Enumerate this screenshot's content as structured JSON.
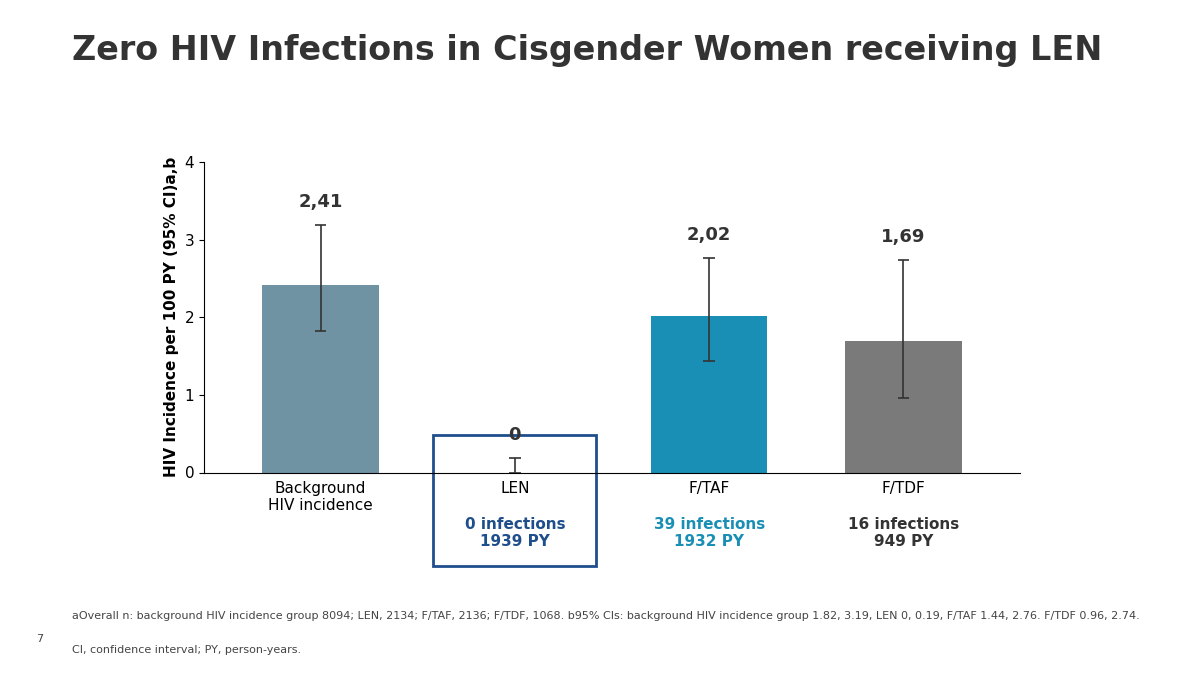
{
  "chart_data": {
    "type": "bar",
    "title": "Zero HIV Infections in Cisgender Women receiving LEN",
    "y_label": "HIV Incidence per 100 PY (95% CI)a,b",
    "categories": [
      "Background\nHIV incidence",
      "LEN",
      "F/TAF",
      "F/TDF"
    ],
    "values": [
      2.41,
      0,
      2.02,
      1.69
    ],
    "value_labels": [
      "2,41",
      "0",
      "2,02",
      "1,69"
    ],
    "error_low": [
      1.82,
      0,
      1.44,
      0.96
    ],
    "error_high": [
      3.19,
      0.19,
      2.76,
      2.74
    ],
    "category_notes": [
      null,
      "0 infections\n1939 PY",
      "39 infections\n1932 PY",
      "16 infections\n949 PY"
    ],
    "colors": [
      "#6f93a3",
      "#1f4e8c",
      "#1a8fb5",
      "#7a7a7a"
    ],
    "ylim": [
      0,
      4
    ],
    "yticks": [
      0,
      1,
      2,
      3,
      4
    ],
    "grid": false,
    "data_labels": true,
    "footnotes": [
      "aOverall n: background HIV incidence group 8094; LEN, 2134; F/TAF, 2136; F/TDF, 1068. b95% CIs: background HIV incidence group 1.82, 3.19, LEN 0, 0.19, F/TAF 1.44, 2.76. F/TDF 0.96, 2.74.",
      "CI, confidence interval; PY, person-years."
    ],
    "page_number": "7"
  }
}
